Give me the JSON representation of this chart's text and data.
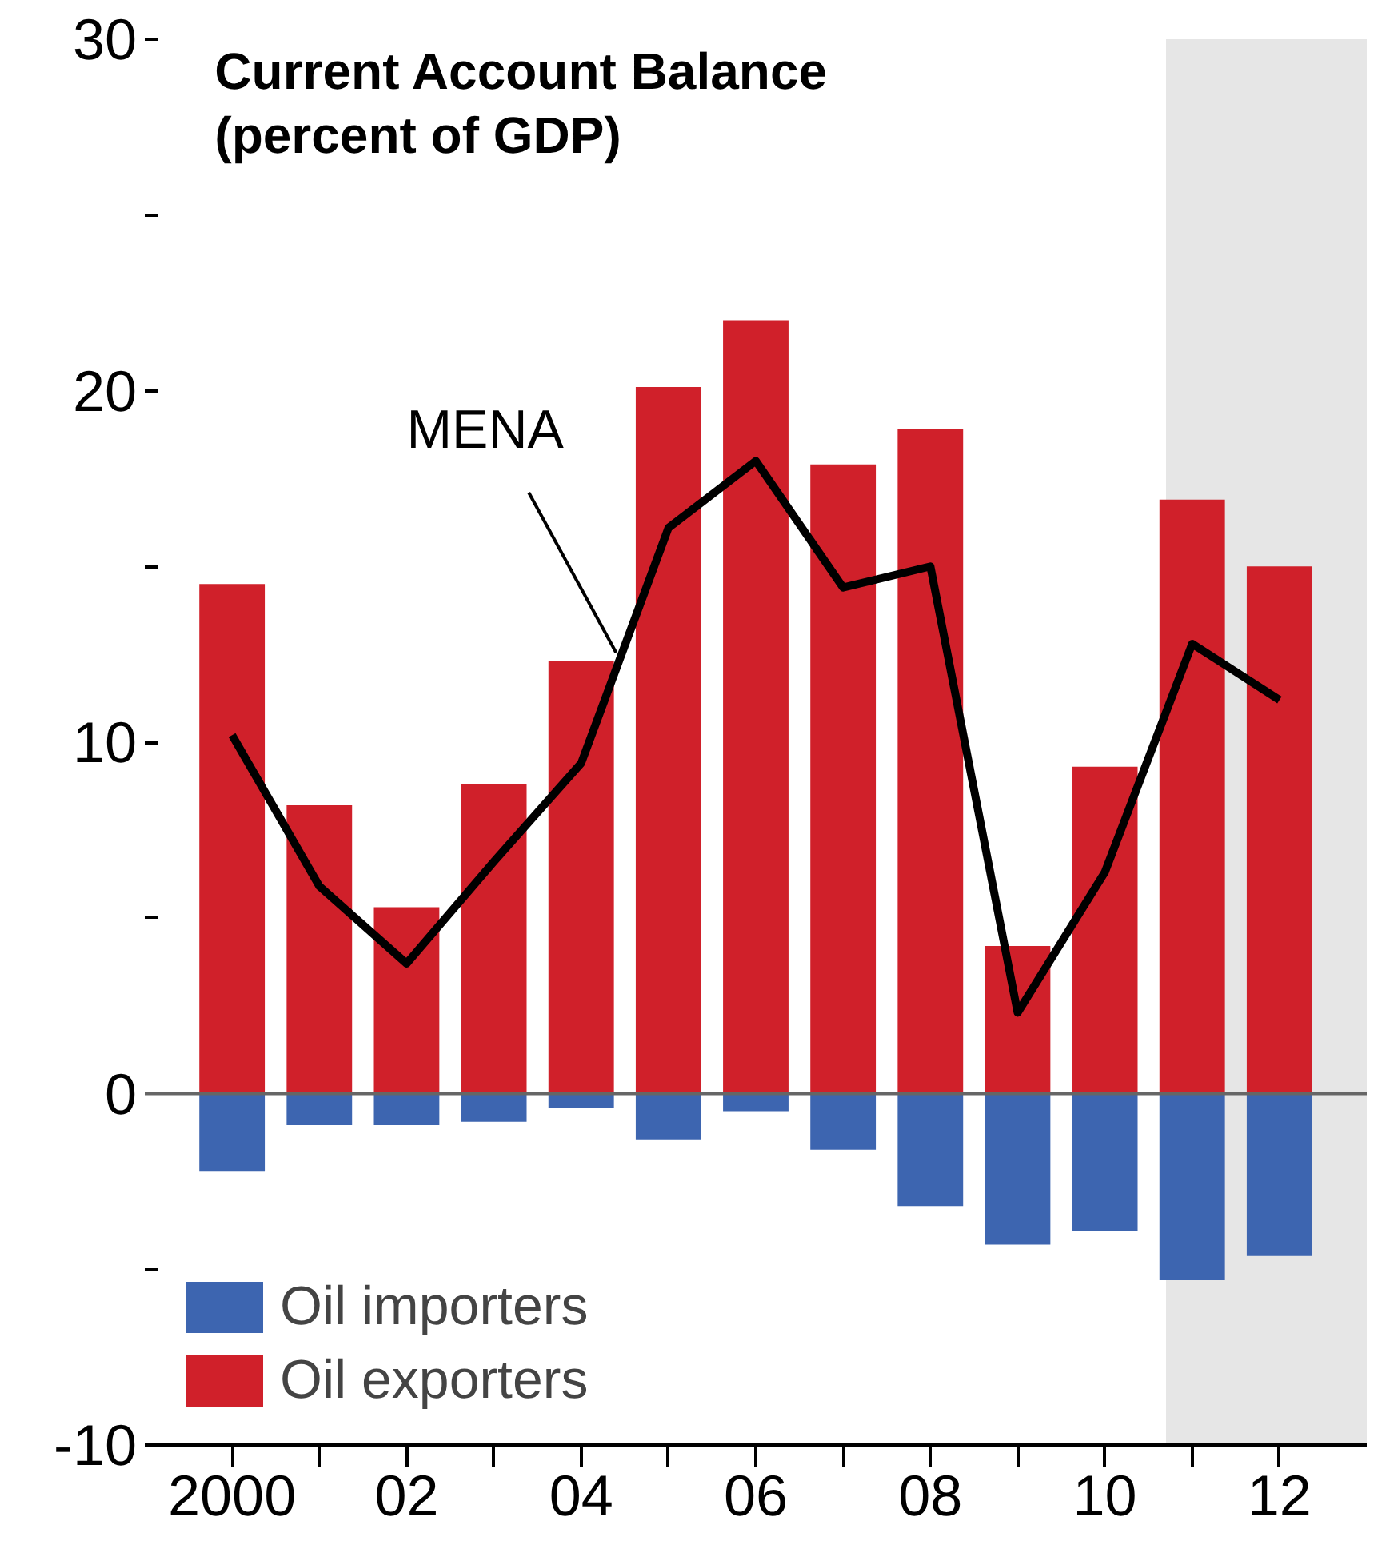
{
  "chart_data": {
    "type": "bar",
    "title": "Current Account Balance\n(percent of GDP)",
    "x": [
      2000,
      2001,
      2002,
      2003,
      2004,
      2005,
      2006,
      2007,
      2008,
      2009,
      2010,
      2011,
      2012
    ],
    "series": [
      {
        "name": "Oil importers",
        "color": "#3d65b0",
        "values": [
          -2.2,
          -0.9,
          -0.9,
          -0.8,
          -0.4,
          -1.3,
          -0.5,
          -1.6,
          -3.2,
          -4.3,
          -3.9,
          -5.3,
          -4.6
        ]
      },
      {
        "name": "Oil exporters",
        "color": "#d0202a",
        "values": [
          14.5,
          8.2,
          5.3,
          8.8,
          12.3,
          20.1,
          22.0,
          17.9,
          18.9,
          4.2,
          9.3,
          16.9,
          15.0
        ]
      },
      {
        "name": "MENA",
        "type": "line",
        "color": "#000000",
        "values": [
          10.2,
          5.9,
          3.7,
          6.6,
          9.4,
          16.1,
          18.0,
          14.4,
          15.0,
          2.3,
          6.3,
          12.8,
          11.2
        ]
      }
    ],
    "xlim": [
      1999,
      2013
    ],
    "ylim": [
      -10,
      30
    ],
    "xticks": [
      {
        "value": 2000,
        "label": "2000"
      },
      {
        "value": 2001,
        "label": null
      },
      {
        "value": 2002,
        "label": "02"
      },
      {
        "value": 2003,
        "label": null
      },
      {
        "value": 2004,
        "label": "04"
      },
      {
        "value": 2005,
        "label": null
      },
      {
        "value": 2006,
        "label": "06"
      },
      {
        "value": 2007,
        "label": null
      },
      {
        "value": 2008,
        "label": "08"
      },
      {
        "value": 2009,
        "label": null
      },
      {
        "value": 2010,
        "label": "10"
      },
      {
        "value": 2011,
        "label": null
      },
      {
        "value": 2012,
        "label": "12"
      }
    ],
    "yticks": [
      -10,
      {
        "value": -5,
        "label": null
      },
      0,
      {
        "value": 5,
        "label": null
      },
      10,
      {
        "value": 15,
        "label": null
      },
      20,
      {
        "value": 25,
        "label": null
      },
      30
    ],
    "bands": [
      {
        "axis": "x",
        "from": 2010.7,
        "to": 2013,
        "color": "#e6e6e6"
      }
    ],
    "ref_lines": [
      {
        "axis": "y",
        "value": 0,
        "color": "#666666"
      }
    ],
    "legend": "bottom left",
    "grid": false,
    "stacked": true
  }
}
